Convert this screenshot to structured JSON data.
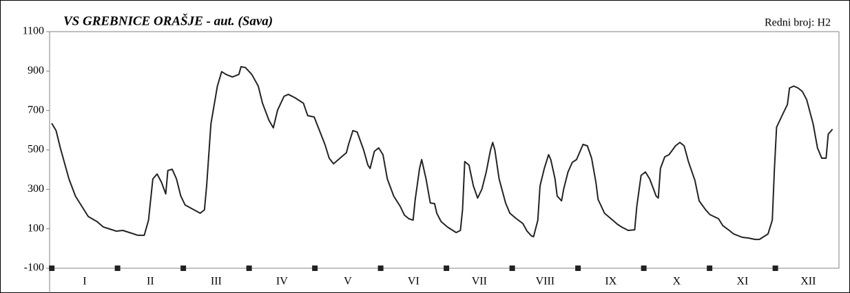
{
  "chart_data": {
    "type": "line",
    "title": "VS GREBNICE ORAŠJE - aut. (Sava)",
    "subtitle": "Redni broj: H2",
    "categories": [
      "I",
      "II",
      "III",
      "IV",
      "V",
      "VI",
      "VII",
      "VIII",
      "IX",
      "X",
      "XI",
      "XII"
    ],
    "color": "#222222",
    "xlim": [
      0,
      367
    ],
    "ylim": [
      -100,
      1100
    ],
    "yticks": [
      -100,
      100,
      300,
      500,
      700,
      900,
      1100
    ],
    "grid": false,
    "x": [
      1,
      3,
      5,
      9,
      12,
      15,
      18,
      22,
      25,
      28,
      31,
      34,
      38,
      41,
      44,
      46,
      48,
      50,
      52,
      54,
      55,
      57,
      59,
      61,
      63,
      66,
      70,
      72,
      73,
      75,
      78,
      80,
      82,
      85,
      88,
      89,
      91,
      94,
      97,
      99,
      102,
      104,
      106,
      109,
      111,
      114,
      116,
      118,
      120,
      123,
      125,
      128,
      130,
      132,
      135,
      138,
      139,
      141,
      143,
      146,
      148,
      149,
      151,
      153,
      155,
      157,
      160,
      163,
      165,
      167,
      169,
      170,
      172,
      173,
      175,
      177,
      179,
      180,
      182,
      185,
      188,
      189,
      191,
      192,
      193,
      195,
      197,
      199,
      201,
      203,
      205,
      206,
      207,
      209,
      212,
      214,
      217,
      220,
      222,
      224,
      225,
      227,
      228,
      230,
      232,
      233,
      235,
      236,
      238,
      239,
      241,
      243,
      245,
      248,
      250,
      252,
      254,
      255,
      258,
      261,
      264,
      266,
      269,
      272,
      273,
      275,
      277,
      279,
      282,
      283,
      284,
      286,
      288,
      291,
      293,
      295,
      297,
      300,
      302,
      305,
      307,
      311,
      313,
      316,
      318,
      322,
      325,
      328,
      330,
      332,
      334,
      336,
      337,
      338,
      341,
      343,
      344,
      346,
      348,
      350,
      352,
      355,
      357,
      359,
      361,
      362,
      364
    ],
    "values": [
      635,
      598,
      510,
      353,
      266,
      214,
      162,
      137,
      109,
      99,
      88,
      92,
      78,
      67,
      67,
      144,
      353,
      378,
      336,
      277,
      396,
      402,
      353,
      266,
      221,
      203,
      179,
      196,
      318,
      632,
      824,
      897,
      883,
      870,
      883,
      922,
      918,
      883,
      824,
      737,
      650,
      612,
      702,
      772,
      782,
      765,
      751,
      737,
      674,
      667,
      612,
      528,
      458,
      430,
      458,
      486,
      528,
      598,
      591,
      500,
      423,
      406,
      493,
      510,
      476,
      353,
      266,
      214,
      169,
      151,
      144,
      249,
      406,
      451,
      353,
      231,
      228,
      179,
      137,
      109,
      88,
      81,
      92,
      196,
      441,
      423,
      318,
      256,
      301,
      388,
      500,
      538,
      500,
      353,
      231,
      179,
      151,
      127,
      88,
      64,
      60,
      144,
      318,
      406,
      476,
      451,
      353,
      266,
      242,
      301,
      388,
      437,
      451,
      528,
      521,
      458,
      336,
      249,
      179,
      151,
      123,
      109,
      92,
      95,
      214,
      371,
      388,
      353,
      266,
      256,
      406,
      465,
      476,
      521,
      538,
      521,
      441,
      346,
      242,
      196,
      172,
      151,
      116,
      92,
      74,
      57,
      53,
      46,
      46,
      60,
      74,
      144,
      406,
      615,
      685,
      730,
      814,
      824,
      814,
      796,
      754,
      632,
      510,
      458,
      458,
      580,
      605
    ]
  }
}
